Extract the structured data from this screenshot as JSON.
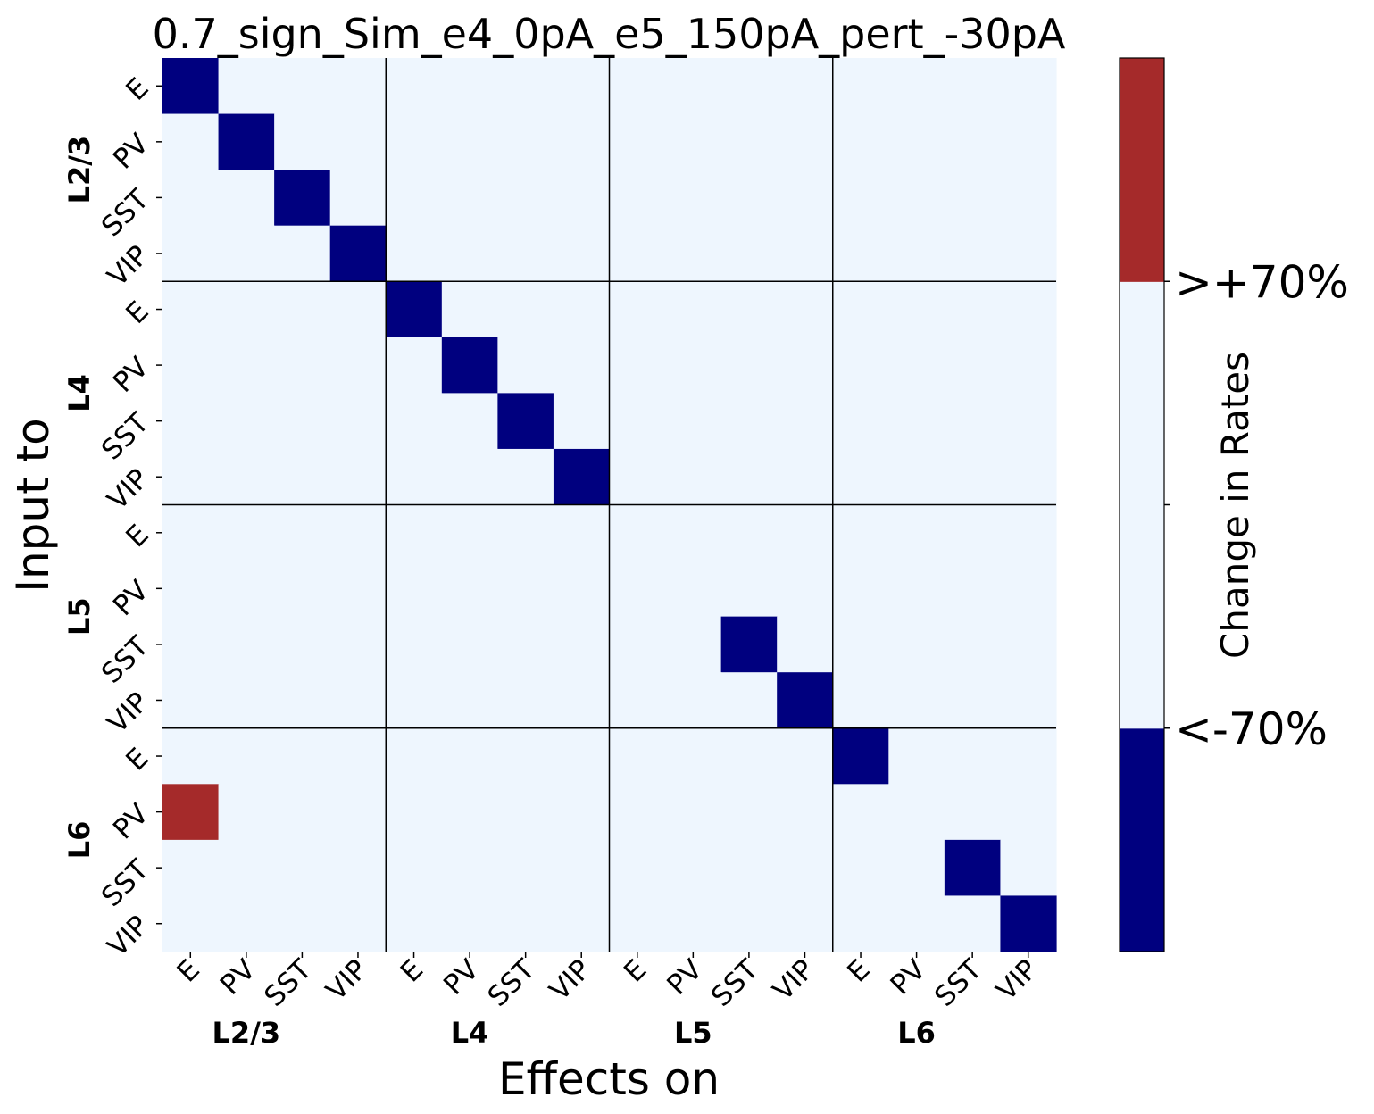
{
  "chart_data": {
    "type": "heatmap",
    "title": "0.7_sign_Sim_e4_0pA_e5_150pA_pert_-30pA",
    "xlabel": "Effects on",
    "ylabel": "Input to",
    "x_ticks": [
      "E",
      "PV",
      "SST",
      "VIP",
      "E",
      "PV",
      "SST",
      "VIP",
      "E",
      "PV",
      "SST",
      "VIP",
      "E",
      "PV",
      "SST",
      "VIP"
    ],
    "y_ticks": [
      "E",
      "PV",
      "SST",
      "VIP",
      "E",
      "PV",
      "SST",
      "VIP",
      "E",
      "PV",
      "SST",
      "VIP",
      "E",
      "PV",
      "SST",
      "VIP"
    ],
    "x_groups": [
      "L2/3",
      "L4",
      "L5",
      "L6"
    ],
    "y_groups": [
      "L2/3",
      "L4",
      "L5",
      "L6"
    ],
    "colorbar": {
      "label": "Change in Rates",
      "tick_labels": [
        "<-70%",
        ">+70%"
      ],
      "colors": [
        "#00007f",
        "#eef6fe",
        "#eef6fe",
        "#a52a2a"
      ]
    },
    "cell_colors": {
      "-1": "#00007f",
      "0": "#eef6fe",
      "1": "#a52a2a"
    },
    "values": [
      [
        -1,
        0,
        0,
        0,
        0,
        0,
        0,
        0,
        0,
        0,
        0,
        0,
        0,
        0,
        0,
        0
      ],
      [
        0,
        -1,
        0,
        0,
        0,
        0,
        0,
        0,
        0,
        0,
        0,
        0,
        0,
        0,
        0,
        0
      ],
      [
        0,
        0,
        -1,
        0,
        0,
        0,
        0,
        0,
        0,
        0,
        0,
        0,
        0,
        0,
        0,
        0
      ],
      [
        0,
        0,
        0,
        -1,
        0,
        0,
        0,
        0,
        0,
        0,
        0,
        0,
        0,
        0,
        0,
        0
      ],
      [
        0,
        0,
        0,
        0,
        -1,
        0,
        0,
        0,
        0,
        0,
        0,
        0,
        0,
        0,
        0,
        0
      ],
      [
        0,
        0,
        0,
        0,
        0,
        -1,
        0,
        0,
        0,
        0,
        0,
        0,
        0,
        0,
        0,
        0
      ],
      [
        0,
        0,
        0,
        0,
        0,
        0,
        -1,
        0,
        0,
        0,
        0,
        0,
        0,
        0,
        0,
        0
      ],
      [
        0,
        0,
        0,
        0,
        0,
        0,
        0,
        -1,
        0,
        0,
        0,
        0,
        0,
        0,
        0,
        0
      ],
      [
        0,
        0,
        0,
        0,
        0,
        0,
        0,
        0,
        0,
        0,
        0,
        0,
        0,
        0,
        0,
        0
      ],
      [
        0,
        0,
        0,
        0,
        0,
        0,
        0,
        0,
        0,
        0,
        0,
        0,
        0,
        0,
        0,
        0
      ],
      [
        0,
        0,
        0,
        0,
        0,
        0,
        0,
        0,
        0,
        0,
        -1,
        0,
        0,
        0,
        0,
        0
      ],
      [
        0,
        0,
        0,
        0,
        0,
        0,
        0,
        0,
        0,
        0,
        0,
        -1,
        0,
        0,
        0,
        0
      ],
      [
        0,
        0,
        0,
        0,
        0,
        0,
        0,
        0,
        0,
        0,
        0,
        0,
        -1,
        0,
        0,
        0
      ],
      [
        1,
        0,
        0,
        0,
        0,
        0,
        0,
        0,
        0,
        0,
        0,
        0,
        0,
        0,
        0,
        0
      ],
      [
        0,
        0,
        0,
        0,
        0,
        0,
        0,
        0,
        0,
        0,
        0,
        0,
        0,
        0,
        -1,
        0
      ],
      [
        0,
        0,
        0,
        0,
        0,
        0,
        0,
        0,
        0,
        0,
        0,
        0,
        0,
        0,
        0,
        -1
      ]
    ]
  }
}
